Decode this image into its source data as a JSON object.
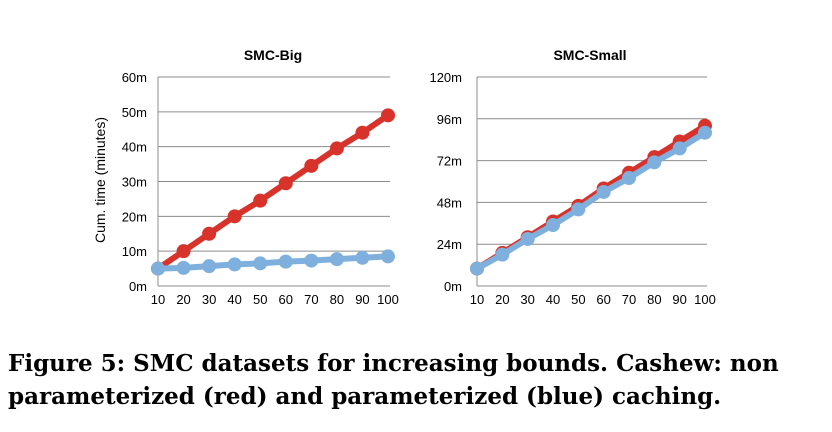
{
  "chart_data": [
    {
      "type": "line",
      "title": "SMC-Big",
      "xlabel": "",
      "ylabel": "Cum. time (minutes)",
      "x": [
        10,
        20,
        30,
        40,
        50,
        60,
        70,
        80,
        90,
        100
      ],
      "ylim": [
        0,
        60
      ],
      "yticks": [
        "0m",
        "10m",
        "20m",
        "30m",
        "40m",
        "50m",
        "60m"
      ],
      "grid": true,
      "series": [
        {
          "color": "#d7332b",
          "values": [
            5,
            10,
            15,
            20,
            24.5,
            29.5,
            34.5,
            39.5,
            44,
            49
          ]
        },
        {
          "color": "#7fb0dd",
          "values": [
            5,
            5.2,
            5.7,
            6.2,
            6.5,
            7,
            7.3,
            7.7,
            8.1,
            8.5
          ]
        }
      ]
    },
    {
      "type": "line",
      "title": "SMC-Small",
      "xlabel": "",
      "ylabel": "",
      "x": [
        10,
        20,
        30,
        40,
        50,
        60,
        70,
        80,
        90,
        100
      ],
      "ylim": [
        0,
        120
      ],
      "yticks": [
        "0m",
        "24m",
        "48m",
        "72m",
        "96m",
        "120m"
      ],
      "grid": true,
      "series": [
        {
          "color": "#d7332b",
          "values": [
            10,
            19,
            28,
            37,
            46,
            56,
            65,
            74,
            83,
            92
          ]
        },
        {
          "color": "#7fb0dd",
          "values": [
            10,
            18,
            27,
            35,
            44,
            54,
            62,
            71,
            79,
            88
          ]
        }
      ]
    }
  ],
  "caption": "Figure 5: SMC datasets for increasing bounds. Cashew: non parameterized (red) and parameterized (blue) caching."
}
